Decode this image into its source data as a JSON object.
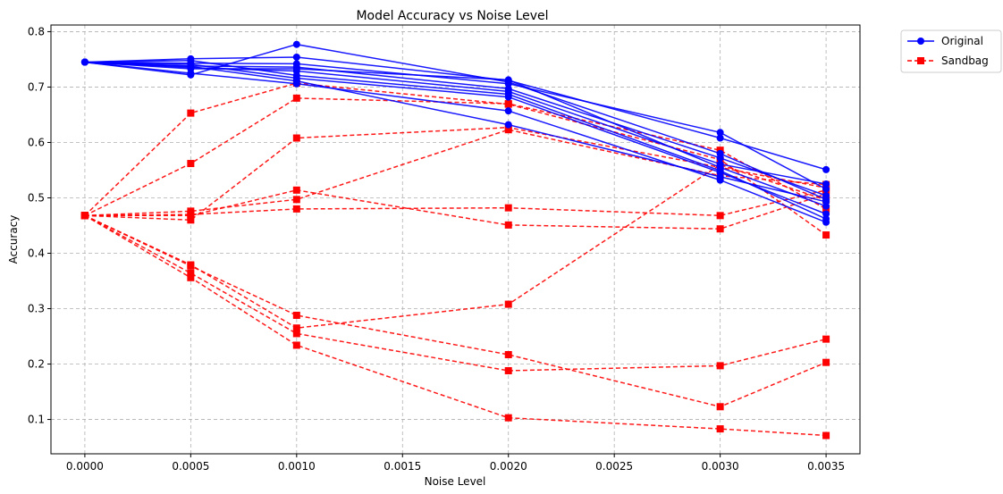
{
  "chart_data": {
    "type": "line",
    "title": "Model Accuracy vs Noise Level",
    "xlabel": "Noise Level",
    "ylabel": "Accuracy",
    "x": [
      0.0,
      0.0005,
      0.001,
      0.002,
      0.003,
      0.0035
    ],
    "xlim": [
      -0.00016,
      0.00366
    ],
    "ylim": [
      0.038,
      0.812
    ],
    "xticks": [
      0.0,
      0.0005,
      0.001,
      0.0015,
      0.002,
      0.0025,
      0.003,
      0.0035
    ],
    "xtick_labels": [
      "0.0000",
      "0.0005",
      "0.0010",
      "0.0015",
      "0.0020",
      "0.0025",
      "0.0030",
      "0.0035"
    ],
    "yticks": [
      0.1,
      0.2,
      0.3,
      0.4,
      0.5,
      0.6,
      0.7,
      0.8
    ],
    "ytick_labels": [
      "0.1",
      "0.2",
      "0.3",
      "0.4",
      "0.5",
      "0.6",
      "0.7",
      "0.8"
    ],
    "grid": true,
    "legend_placement": "outside top-right",
    "legend": [
      {
        "label": "Original",
        "color": "#0000ff",
        "marker": "circle",
        "linestyle": "solid"
      },
      {
        "label": "Sandbag",
        "color": "#ff0000",
        "marker": "square",
        "linestyle": "dashed"
      }
    ],
    "groups": [
      {
        "legend_label": "Original",
        "color": "#0000ff",
        "runs": [
          [
            0.745,
            0.722,
            0.777,
            0.709,
            0.58,
            0.497
          ],
          [
            0.745,
            0.751,
            0.754,
            0.712,
            0.608,
            0.551
          ],
          [
            0.745,
            0.743,
            0.742,
            0.706,
            0.618,
            0.516
          ],
          [
            0.745,
            0.738,
            0.736,
            0.697,
            0.572,
            0.504
          ],
          [
            0.745,
            0.735,
            0.729,
            0.692,
            0.561,
            0.525
          ],
          [
            0.745,
            0.748,
            0.721,
            0.687,
            0.549,
            0.462
          ],
          [
            0.745,
            0.741,
            0.716,
            0.682,
            0.546,
            0.471
          ],
          [
            0.745,
            0.737,
            0.711,
            0.632,
            0.538,
            0.493
          ],
          [
            0.745,
            0.725,
            0.706,
            0.657,
            0.532,
            0.456
          ],
          [
            0.745,
            0.733,
            0.733,
            0.713,
            0.555,
            0.485
          ]
        ]
      },
      {
        "legend_label": "Sandbag",
        "color": "#ff0000",
        "runs": [
          [
            0.468,
            0.653,
            0.707,
            0.669,
            0.569,
            0.433
          ],
          [
            0.468,
            0.562,
            0.68,
            0.67,
            0.586,
            0.48
          ],
          [
            0.468,
            0.46,
            0.608,
            0.627,
            0.555,
            0.518
          ],
          [
            0.468,
            0.476,
            0.497,
            0.623,
            0.54,
            0.524
          ],
          [
            0.468,
            0.47,
            0.48,
            0.482,
            0.468,
            0.514
          ],
          [
            0.468,
            0.468,
            0.514,
            0.451,
            0.444,
            0.507
          ],
          [
            0.468,
            0.379,
            0.265,
            0.308,
            0.56,
            0.496
          ],
          [
            0.468,
            0.377,
            0.288,
            0.217,
            0.123,
            0.203
          ],
          [
            0.468,
            0.364,
            0.255,
            0.188,
            0.197,
            0.245
          ],
          [
            0.468,
            0.356,
            0.234,
            0.103,
            0.083,
            0.071
          ]
        ]
      }
    ]
  }
}
